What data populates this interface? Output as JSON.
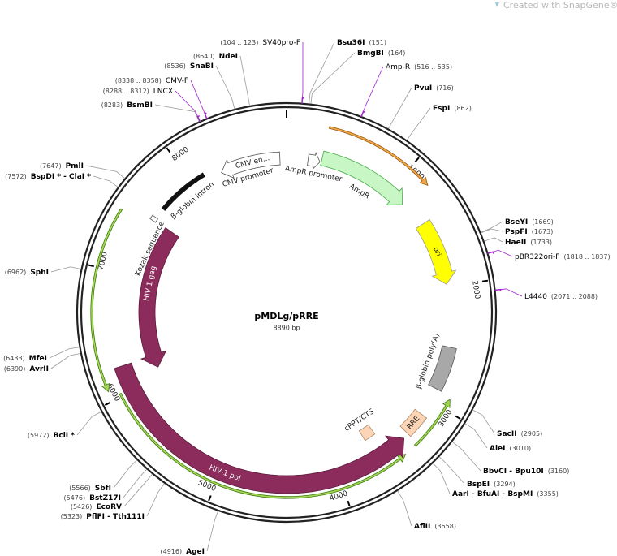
{
  "watermark": "Created with SnapGene®",
  "plasmid": {
    "name": "pMDLg/pRRE",
    "size": "8890 bp"
  },
  "ruler_ticks": [
    1000,
    2000,
    3000,
    4000,
    5000,
    6000,
    7000,
    8000
  ],
  "sites": [
    {
      "name": "Bsu36I",
      "position": "(151)"
    },
    {
      "name": "BmgBI",
      "position": "(164)"
    },
    {
      "name": "PvuI",
      "position": "(716)"
    },
    {
      "name": "FspI",
      "position": "(862)"
    },
    {
      "name": "BseYI",
      "position": "(1669)"
    },
    {
      "name": "PspFI",
      "position": "(1673)"
    },
    {
      "name": "HaeII",
      "position": "(1733)"
    },
    {
      "name": "SacII",
      "position": "(2905)"
    },
    {
      "name": "AleI",
      "position": "(3010)"
    },
    {
      "name": "BbvCI - Bpu10I",
      "position": "(3160)"
    },
    {
      "name": "BspEI",
      "position": "(3294)"
    },
    {
      "name": "AarI - BfuAI - BspMI",
      "position": "(3355)"
    },
    {
      "name": "AflII",
      "position": "(3658)"
    },
    {
      "name": "AgeI",
      "position": "(4916)"
    },
    {
      "name": "PflFI - Tth111I",
      "position": "(5323)"
    },
    {
      "name": "EcoRV",
      "position": "(5426)"
    },
    {
      "name": "BstZ17I",
      "position": "(5476)"
    },
    {
      "name": "SbfI",
      "position": "(5566)"
    },
    {
      "name": "BclI *",
      "position": "(5972)"
    },
    {
      "name": "AvrII",
      "position": "(6390)"
    },
    {
      "name": "MfeI",
      "position": "(6433)"
    },
    {
      "name": "SphI",
      "position": "(6962)"
    },
    {
      "name": "BspDI * - ClaI *",
      "position": "(7572)"
    },
    {
      "name": "PmlI",
      "position": "(7647)"
    },
    {
      "name": "BsmBI",
      "position": "(8283)"
    },
    {
      "name": "SnaBI",
      "position": "(8536)"
    },
    {
      "name": "NdeI",
      "position": "(8640)"
    }
  ],
  "primers": [
    {
      "name": "SV40pro-F",
      "range": "(104 .. 123)"
    },
    {
      "name": "Amp-R",
      "range": "(516 .. 535)"
    },
    {
      "name": "pBR322ori-F",
      "range": "(1818 .. 1837)"
    },
    {
      "name": "L4440",
      "range": "(2071 .. 2088)"
    },
    {
      "name": "CMV-F",
      "range": "(8338 .. 8358)"
    },
    {
      "name": "LNCX",
      "range": "(8288 .. 8312)"
    }
  ],
  "features": [
    {
      "name": "CMV promoter",
      "inner_label": "CMV en..."
    },
    {
      "name": "AmpR promoter"
    },
    {
      "name": "AmpR"
    },
    {
      "name": "ori"
    },
    {
      "name": "β-globin poly(A)"
    },
    {
      "name": "RRE"
    },
    {
      "name": "cPPT/CTS"
    },
    {
      "name": "HIV-1 pol"
    },
    {
      "name": "HIV-1 gag"
    },
    {
      "name": "β-globin intron"
    },
    {
      "name": "Kozak sequence"
    }
  ]
}
